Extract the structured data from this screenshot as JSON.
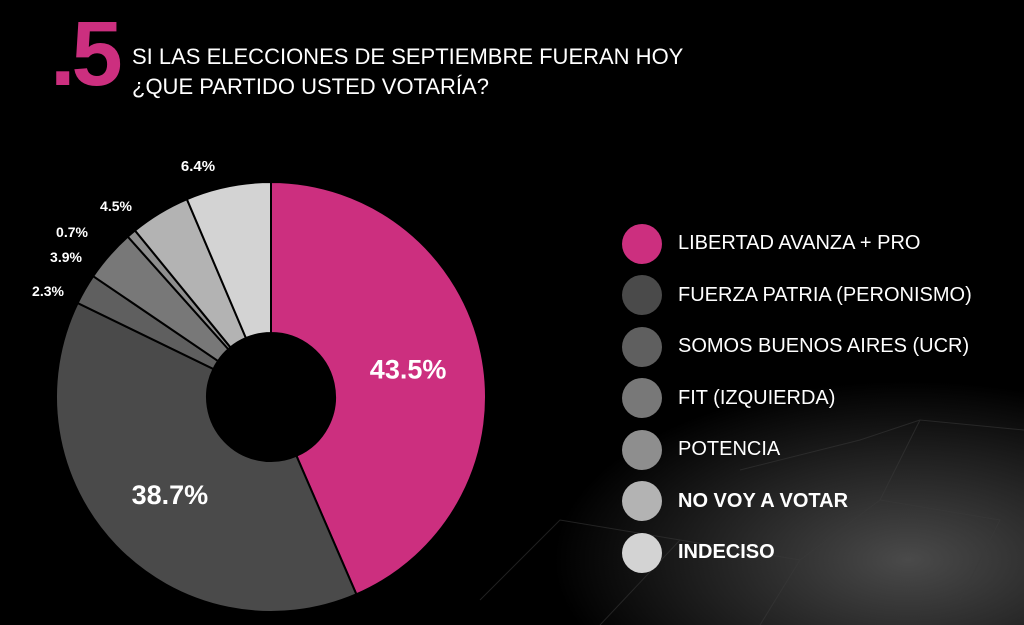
{
  "header": {
    "number": ".5",
    "title_line1": "SI LAS ELECCIONES DE SEPTIEMBRE FUERAN HOY",
    "title_line2": "¿QUE PARTIDO USTED VOTARÍA?"
  },
  "legend": [
    {
      "label": "LIBERTAD AVANZA + PRO",
      "bold": false
    },
    {
      "label": "FUERZA PATRIA (PERONISMO)",
      "bold": false
    },
    {
      "label": "SOMOS BUENOS AIRES (UCR)",
      "bold": false
    },
    {
      "label": "FIT (IZQUIERDA)",
      "bold": false
    },
    {
      "label": "POTENCIA",
      "bold": false
    },
    {
      "label": "NO VOY A VOTAR",
      "bold": true
    },
    {
      "label": "INDECISO",
      "bold": true
    }
  ],
  "chart_data": {
    "type": "pie",
    "style": "donut",
    "categories": [
      "LIBERTAD AVANZA + PRO",
      "FUERZA PATRIA (PERONISMO)",
      "SOMOS BUENOS AIRES (UCR)",
      "FIT (IZQUIERDA)",
      "POTENCIA",
      "NO VOY A VOTAR",
      "INDECISO"
    ],
    "values": [
      43.5,
      38.7,
      2.3,
      3.9,
      0.7,
      4.5,
      6.4
    ],
    "labels": [
      "43.5%",
      "38.7%",
      "2.3%",
      "3.9%",
      "0.7%",
      "4.5%",
      "6.4%"
    ],
    "colors": [
      "#cc2f7f",
      "#4a4a4a",
      "#5f5f5f",
      "#787878",
      "#8e8e8e",
      "#b3b3b3",
      "#d3d3d3"
    ],
    "legend_position": "right"
  }
}
